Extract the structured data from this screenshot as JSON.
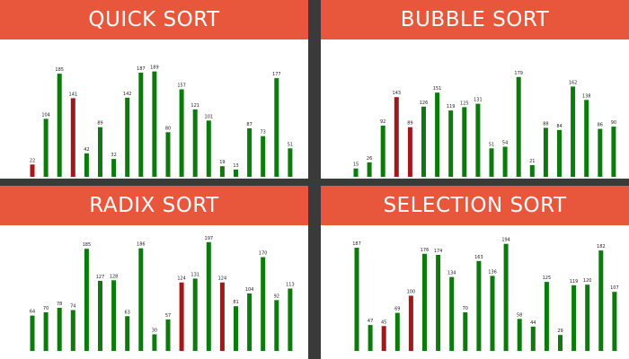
{
  "colors": {
    "header": "#e8573c",
    "header_text": "#ffffff",
    "divider": "#3a3a3a",
    "bar_default": "#0d7a0d",
    "bar_active": "#a4171a",
    "panel_bg": "#ffffff"
  },
  "chart_data": [
    {
      "type": "bar",
      "title": "QUICK SORT",
      "values": [
        22,
        104,
        185,
        141,
        42,
        89,
        32,
        142,
        187,
        189,
        80,
        157,
        121,
        101,
        19,
        13,
        87,
        73,
        177,
        51
      ],
      "highlight": [
        0,
        3
      ],
      "ylim": [
        0,
        200
      ]
    },
    {
      "type": "bar",
      "title": "BUBBLE SORT",
      "values": [
        15,
        26,
        92,
        143,
        89,
        126,
        151,
        119,
        125,
        131,
        51,
        54,
        179,
        21,
        88,
        84,
        162,
        138,
        86,
        90
      ],
      "highlight": [
        3,
        4
      ],
      "ylim": [
        0,
        200
      ]
    },
    {
      "type": "bar",
      "title": "RADIX SORT",
      "values": [
        64,
        70,
        78,
        74,
        185,
        127,
        128,
        63,
        186,
        30,
        57,
        124,
        131,
        197,
        124,
        81,
        104,
        170,
        92,
        113
      ],
      "highlight": [
        11,
        14
      ],
      "ylim": [
        0,
        200
      ]
    },
    {
      "type": "bar",
      "title": "SELECTION SORT",
      "values": [
        187,
        47,
        45,
        69,
        100,
        176,
        174,
        134,
        70,
        163,
        136,
        194,
        58,
        44,
        125,
        29,
        119,
        120,
        182,
        107
      ],
      "highlight": [
        2,
        4
      ],
      "ylim": [
        0,
        200
      ]
    }
  ]
}
